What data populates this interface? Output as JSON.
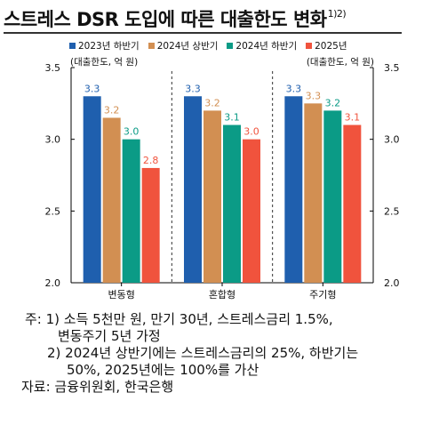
{
  "title": "스트레스 DSR 도입에 따른 대출한도 변화",
  "title_note": "1)2)",
  "unit_left": "(대출한도, 억 원)",
  "unit_right": "(대출한도, 억 원)",
  "colors": {
    "2023년 하반기": "#1f5fae",
    "2024년 상반기": "#d28f52",
    "2024년 하반기": "#0b9b86",
    "2025년": "#f0533d"
  },
  "chart_data": {
    "type": "bar",
    "title": "스트레스 DSR 도입에 따른 대출한도 변화",
    "categories": [
      "변동형",
      "혼합형",
      "주기형"
    ],
    "series": [
      {
        "name": "2023년 하반기",
        "values": [
          3.3,
          3.3,
          3.3
        ],
        "labels": [
          "3.3",
          "3.3",
          "3.3"
        ]
      },
      {
        "name": "2024년 상반기",
        "values": [
          3.15,
          3.2,
          3.25
        ],
        "labels": [
          "3.2",
          "3.2",
          "3.3"
        ]
      },
      {
        "name": "2024년 하반기",
        "values": [
          3.0,
          3.1,
          3.2
        ],
        "labels": [
          "3.0",
          "3.1",
          "3.2"
        ]
      },
      {
        "name": "2025년",
        "values": [
          2.8,
          3.0,
          3.1
        ],
        "labels": [
          "2.8",
          "3.0",
          "3.1"
        ]
      }
    ],
    "yticks": [
      "2.0",
      "2.5",
      "3.0",
      "3.5"
    ],
    "ylim": [
      2.0,
      3.5
    ],
    "legend_position": "top",
    "grid": false
  },
  "notes": [
    "주: 1) 소득 5천만 원, 만기 30년, 스트레스금리 1.5%,",
    "변동주기 5년 가정",
    "2) 2024년 상반기에는 스트레스금리의 25%, 하반기는",
    "50%, 2025년에는 100%를 가산",
    "자료: 금융위원회, 한국은행"
  ]
}
